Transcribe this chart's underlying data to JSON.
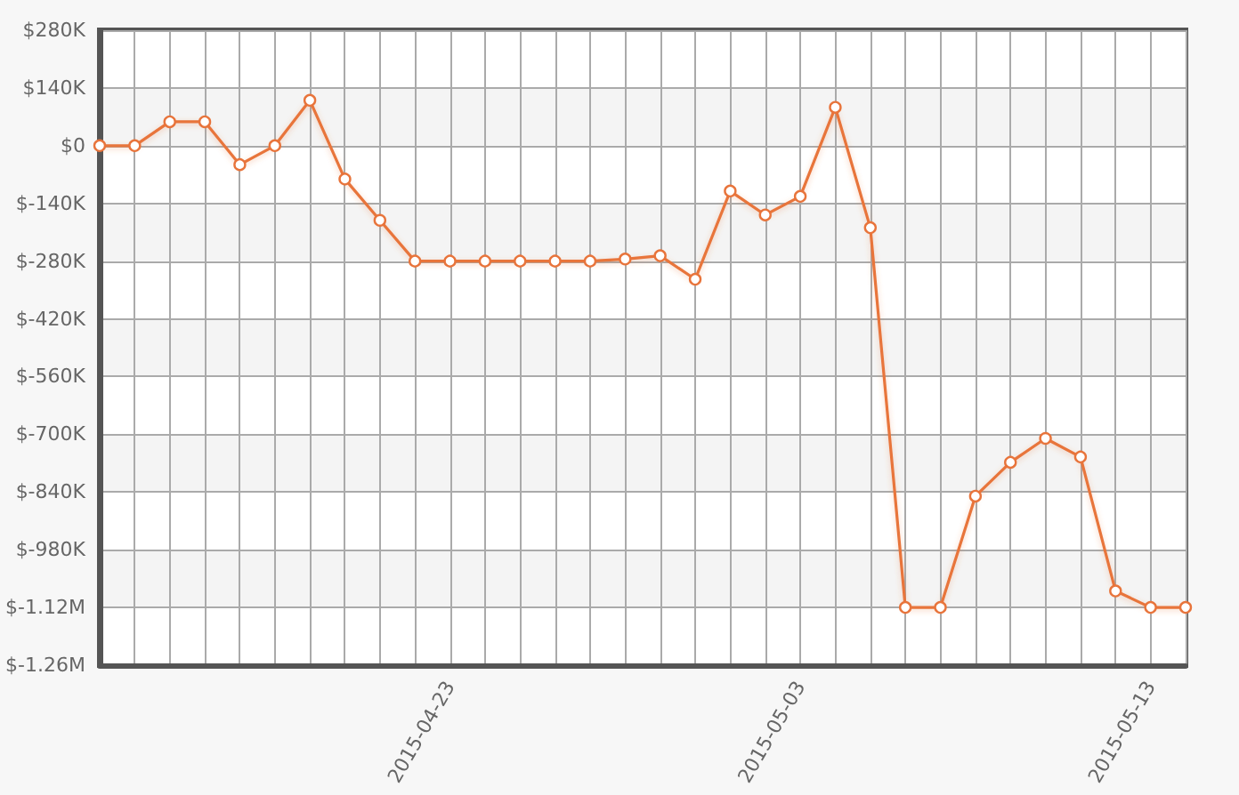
{
  "chart_data": {
    "type": "line",
    "x": [
      "2015-04-13",
      "2015-04-14",
      "2015-04-15",
      "2015-04-16",
      "2015-04-17",
      "2015-04-18",
      "2015-04-19",
      "2015-04-20",
      "2015-04-21",
      "2015-04-22",
      "2015-04-23",
      "2015-04-24",
      "2015-04-25",
      "2015-04-26",
      "2015-04-27",
      "2015-04-28",
      "2015-04-29",
      "2015-04-30",
      "2015-05-01",
      "2015-05-02",
      "2015-05-03",
      "2015-05-04",
      "2015-05-05",
      "2015-05-06",
      "2015-05-07",
      "2015-05-08",
      "2015-05-09",
      "2015-05-10",
      "2015-05-11",
      "2015-05-12",
      "2015-05-13",
      "2015-05-14"
    ],
    "series": [
      {
        "color": "#e8743b",
        "values": [
          0,
          0,
          58000,
          58000,
          -46000,
          0,
          110000,
          -81000,
          -181000,
          -280000,
          -280000,
          -280000,
          -280000,
          -280000,
          -280000,
          -275000,
          -267000,
          -324000,
          -110000,
          -168000,
          -123000,
          93000,
          -199000,
          -1120000,
          -1120000,
          -850000,
          -768000,
          -710000,
          -755000,
          -1080000,
          -1120000,
          -1120000
        ]
      }
    ],
    "xlim": [
      "2015-04-13",
      "2015-05-14"
    ],
    "xticks": [
      {
        "value": "2015-04-13",
        "label": null
      },
      {
        "value": "2015-04-14",
        "label": null
      },
      {
        "value": "2015-04-15",
        "label": null
      },
      {
        "value": "2015-04-16",
        "label": null
      },
      {
        "value": "2015-04-17",
        "label": null
      },
      {
        "value": "2015-04-18",
        "label": null
      },
      {
        "value": "2015-04-19",
        "label": null
      },
      {
        "value": "2015-04-20",
        "label": null
      },
      {
        "value": "2015-04-21",
        "label": null
      },
      {
        "value": "2015-04-22",
        "label": null
      },
      {
        "value": "2015-04-23",
        "label": "2015-04-23"
      },
      {
        "value": "2015-04-24",
        "label": null
      },
      {
        "value": "2015-04-25",
        "label": null
      },
      {
        "value": "2015-04-26",
        "label": null
      },
      {
        "value": "2015-04-27",
        "label": null
      },
      {
        "value": "2015-04-28",
        "label": null
      },
      {
        "value": "2015-04-29",
        "label": null
      },
      {
        "value": "2015-04-30",
        "label": null
      },
      {
        "value": "2015-05-01",
        "label": null
      },
      {
        "value": "2015-05-02",
        "label": null
      },
      {
        "value": "2015-05-03",
        "label": "2015-05-03"
      },
      {
        "value": "2015-05-04",
        "label": null
      },
      {
        "value": "2015-05-05",
        "label": null
      },
      {
        "value": "2015-05-06",
        "label": null
      },
      {
        "value": "2015-05-07",
        "label": null
      },
      {
        "value": "2015-05-08",
        "label": null
      },
      {
        "value": "2015-05-09",
        "label": null
      },
      {
        "value": "2015-05-10",
        "label": null
      },
      {
        "value": "2015-05-11",
        "label": null
      },
      {
        "value": "2015-05-12",
        "label": null
      },
      {
        "value": "2015-05-13",
        "label": "2015-05-13"
      },
      {
        "value": "2015-05-14",
        "label": null
      }
    ],
    "ylim": [
      -1260000,
      280000
    ],
    "yticks": [
      {
        "value": -1260000,
        "label": "$-1.26M"
      },
      {
        "value": -1120000,
        "label": "$-1.12M"
      },
      {
        "value": -980000,
        "label": "$-980K"
      },
      {
        "value": -840000,
        "label": "$-840K"
      },
      {
        "value": -700000,
        "label": "$-700K"
      },
      {
        "value": -560000,
        "label": "$-560K"
      },
      {
        "value": -420000,
        "label": "$-420K"
      },
      {
        "value": -280000,
        "label": "$-280K"
      },
      {
        "value": -140000,
        "label": "$-140K"
      },
      {
        "value": 0,
        "label": "$0"
      },
      {
        "value": 140000,
        "label": "$140K"
      },
      {
        "value": 280000,
        "label": "$280K"
      }
    ],
    "grid": true,
    "marker": "circle",
    "line_style": "solid"
  }
}
